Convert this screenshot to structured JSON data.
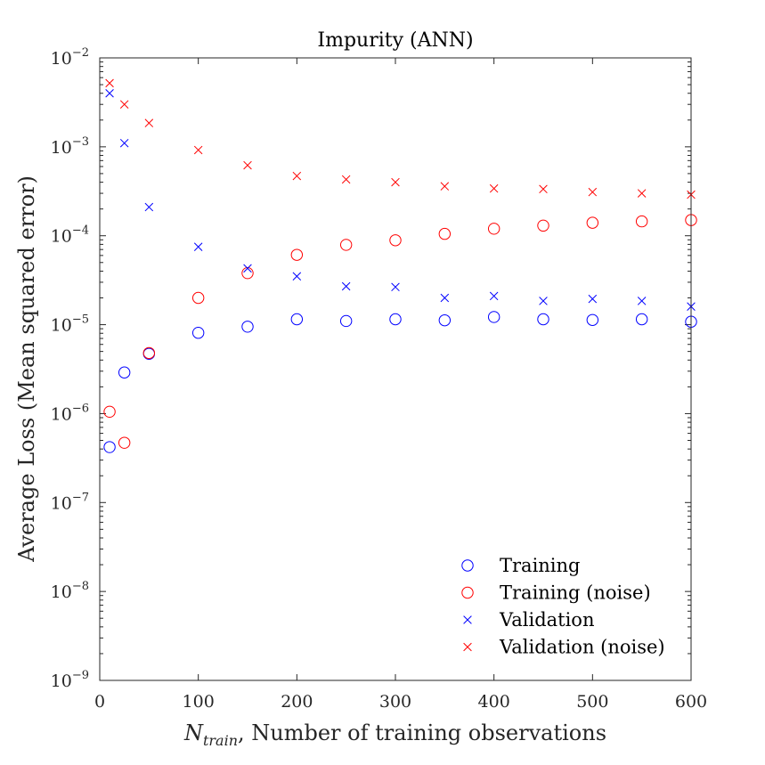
{
  "chart_data": {
    "type": "scatter",
    "title": "Impurity (ANN)",
    "xlabel_main": "N",
    "xlabel_sub": "train",
    "xlabel_rest": ", Number of training observations",
    "ylabel": "Average Loss (Mean squared error)",
    "xlim": [
      0,
      600
    ],
    "ylim": [
      1e-09,
      0.01
    ],
    "yscale": "log",
    "x_ticks": [
      0,
      100,
      200,
      300,
      400,
      500,
      600
    ],
    "y_ticks": [
      {
        "exp": -9,
        "base": "10",
        "sup": "−9"
      },
      {
        "exp": -8,
        "base": "10",
        "sup": "−8"
      },
      {
        "exp": -7,
        "base": "10",
        "sup": "−7"
      },
      {
        "exp": -6,
        "base": "10",
        "sup": "−6"
      },
      {
        "exp": -5,
        "base": "10",
        "sup": "−5"
      },
      {
        "exp": -4,
        "base": "10",
        "sup": "−4"
      },
      {
        "exp": -3,
        "base": "10",
        "sup": "−3"
      },
      {
        "exp": -2,
        "base": "10",
        "sup": "−2"
      }
    ],
    "grid": false,
    "legend_position": "bottom-right",
    "x": [
      10,
      25,
      50,
      100,
      150,
      200,
      250,
      300,
      350,
      400,
      450,
      500,
      550,
      600
    ],
    "series": [
      {
        "name": "Training",
        "marker": "circle",
        "color": "#0000ff",
        "values": [
          4.2e-07,
          2.9e-06,
          4.7e-06,
          8.1e-06,
          9.5e-06,
          1.15e-05,
          1.1e-05,
          1.15e-05,
          1.12e-05,
          1.22e-05,
          1.15e-05,
          1.13e-05,
          1.15e-05,
          1.08e-05
        ]
      },
      {
        "name": "Training (noise)",
        "marker": "circle",
        "color": "#ff0000",
        "values": [
          1.05e-06,
          4.7e-07,
          4.8e-06,
          2e-05,
          3.8e-05,
          6.1e-05,
          7.9e-05,
          8.9e-05,
          0.000105,
          0.00012,
          0.00013,
          0.00014,
          0.000145,
          0.00015
        ]
      },
      {
        "name": "Validation",
        "marker": "x",
        "color": "#0000ff",
        "values": [
          0.004,
          0.0011,
          0.00021,
          7.5e-05,
          4.3e-05,
          3.5e-05,
          2.7e-05,
          2.65e-05,
          2e-05,
          2.1e-05,
          1.85e-05,
          1.95e-05,
          1.85e-05,
          1.6e-05
        ]
      },
      {
        "name": "Validation (noise)",
        "marker": "x",
        "color": "#ff0000",
        "values": [
          0.0052,
          0.003,
          0.00185,
          0.00092,
          0.00062,
          0.00047,
          0.00043,
          0.0004,
          0.00036,
          0.00034,
          0.000335,
          0.00031,
          0.0003,
          0.00029
        ]
      }
    ]
  }
}
